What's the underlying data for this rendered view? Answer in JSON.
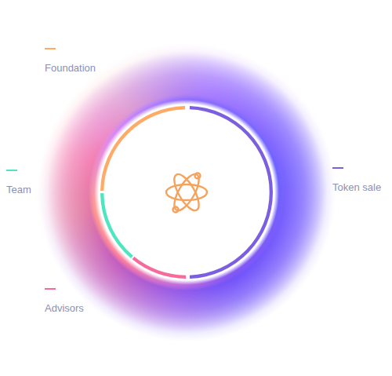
{
  "chart_data": {
    "type": "doughnut",
    "categories": [
      "Token sale",
      "Advisors",
      "Team",
      "Foundation"
    ],
    "values": [
      50,
      11,
      14,
      25
    ],
    "colors": [
      "#7c5fe0",
      "#f56b9c",
      "#4ee6c0",
      "#ffaa66"
    ]
  }
}
